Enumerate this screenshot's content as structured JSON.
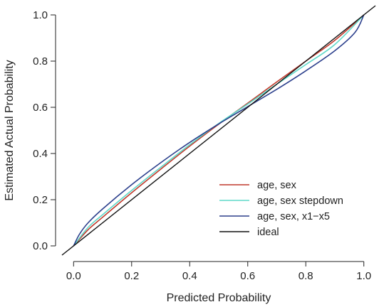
{
  "chart_data": {
    "type": "line",
    "title": "",
    "xlabel": "Predicted Probability",
    "ylabel": "Estimated Actual Probability",
    "xlim": [
      -0.04,
      1.04
    ],
    "ylim": [
      -0.04,
      1.04
    ],
    "x_ticks": [
      0.0,
      0.2,
      0.4,
      0.6,
      0.8,
      1.0
    ],
    "y_ticks": [
      0.0,
      0.2,
      0.4,
      0.6,
      0.8,
      1.0
    ],
    "x_tick_labels": [
      "0.0",
      "0.2",
      "0.4",
      "0.6",
      "0.8",
      "1.0"
    ],
    "y_tick_labels": [
      "0.0",
      "0.2",
      "0.4",
      "0.6",
      "0.8",
      "1.0"
    ],
    "grid": false,
    "legend_position": "bottom-right",
    "series": [
      {
        "name": "age, sex",
        "color": "#c0392b",
        "x": [
          0.0,
          0.05,
          0.1,
          0.2,
          0.3,
          0.4,
          0.5,
          0.6,
          0.7,
          0.8,
          0.9,
          1.0
        ],
        "y": [
          0.0,
          0.07,
          0.124,
          0.23,
          0.332,
          0.432,
          0.527,
          0.618,
          0.71,
          0.8,
          0.89,
          1.0
        ]
      },
      {
        "name": "age, sex stepdown",
        "color": "#5ed8c8",
        "x": [
          0.0,
          0.05,
          0.1,
          0.2,
          0.3,
          0.4,
          0.5,
          0.6,
          0.7,
          0.8,
          0.9,
          1.0
        ],
        "y": [
          0.0,
          0.08,
          0.135,
          0.24,
          0.34,
          0.438,
          0.53,
          0.614,
          0.7,
          0.785,
          0.872,
          1.0
        ]
      },
      {
        "name": "age, sex, x1−x5",
        "color": "#2b3f8c",
        "x": [
          0.0,
          0.02,
          0.05,
          0.1,
          0.2,
          0.3,
          0.4,
          0.5,
          0.6,
          0.7,
          0.8,
          0.9,
          0.97,
          1.0
        ],
        "y": [
          0.0,
          0.05,
          0.1,
          0.16,
          0.265,
          0.36,
          0.448,
          0.528,
          0.603,
          0.678,
          0.758,
          0.845,
          0.925,
          1.0
        ]
      },
      {
        "name": "ideal",
        "color": "#111111",
        "x": [
          -0.04,
          1.04
        ],
        "y": [
          -0.04,
          1.04
        ]
      }
    ]
  }
}
